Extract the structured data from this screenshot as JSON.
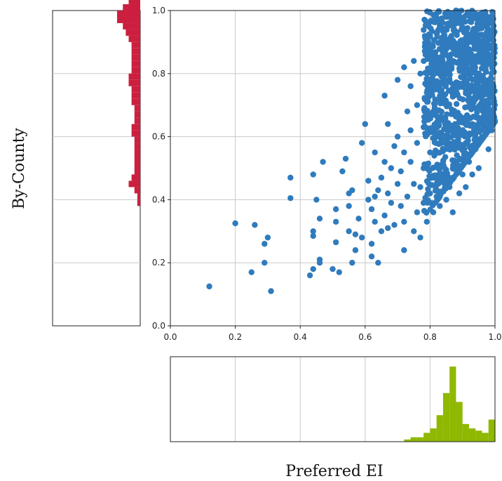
{
  "chart_data": {
    "type": "scatter",
    "xlabel": "Preferred EI",
    "ylabel": "By-County",
    "xlim": [
      0.0,
      1.0
    ],
    "ylim": [
      0.0,
      1.0
    ],
    "grid": true,
    "x_ticks": [
      "0.0",
      "0.2",
      "0.4",
      "0.6",
      "0.8",
      "1.0"
    ],
    "y_ticks": [
      "0.0",
      "0.2",
      "0.4",
      "0.6",
      "0.8",
      "1.0"
    ],
    "scatter_color": "#2f7bbd",
    "points": [
      [
        0.12,
        0.125
      ],
      [
        0.2,
        0.325
      ],
      [
        0.26,
        0.32
      ],
      [
        0.25,
        0.17
      ],
      [
        0.29,
        0.26
      ],
      [
        0.29,
        0.2
      ],
      [
        0.3,
        0.28
      ],
      [
        0.31,
        0.11
      ],
      [
        0.37,
        0.47
      ],
      [
        0.37,
        0.405
      ],
      [
        0.43,
        0.16
      ],
      [
        0.44,
        0.18
      ],
      [
        0.44,
        0.3
      ],
      [
        0.44,
        0.285
      ],
      [
        0.44,
        0.48
      ],
      [
        0.45,
        0.4
      ],
      [
        0.46,
        0.34
      ],
      [
        0.46,
        0.21
      ],
      [
        0.46,
        0.2
      ],
      [
        0.47,
        0.52
      ],
      [
        0.5,
        0.18
      ],
      [
        0.51,
        0.37
      ],
      [
        0.51,
        0.33
      ],
      [
        0.51,
        0.265
      ],
      [
        0.52,
        0.17
      ],
      [
        0.53,
        0.49
      ],
      [
        0.54,
        0.53
      ],
      [
        0.55,
        0.42
      ],
      [
        0.55,
        0.38
      ],
      [
        0.55,
        0.3
      ],
      [
        0.56,
        0.2
      ],
      [
        0.56,
        0.43
      ],
      [
        0.57,
        0.24
      ],
      [
        0.57,
        0.29
      ],
      [
        0.58,
        0.34
      ],
      [
        0.59,
        0.28
      ],
      [
        0.59,
        0.58
      ],
      [
        0.6,
        0.64
      ],
      [
        0.61,
        0.4
      ],
      [
        0.61,
        0.46
      ],
      [
        0.62,
        0.22
      ],
      [
        0.62,
        0.26
      ],
      [
        0.62,
        0.37
      ],
      [
        0.63,
        0.33
      ],
      [
        0.63,
        0.41
      ],
      [
        0.63,
        0.55
      ],
      [
        0.64,
        0.2
      ],
      [
        0.64,
        0.43
      ],
      [
        0.65,
        0.3
      ],
      [
        0.65,
        0.47
      ],
      [
        0.66,
        0.35
      ],
      [
        0.66,
        0.52
      ],
      [
        0.66,
        0.73
      ],
      [
        0.67,
        0.31
      ],
      [
        0.67,
        0.42
      ],
      [
        0.67,
        0.64
      ],
      [
        0.68,
        0.39
      ],
      [
        0.68,
        0.5
      ],
      [
        0.69,
        0.32
      ],
      [
        0.69,
        0.57
      ],
      [
        0.7,
        0.45
      ],
      [
        0.7,
        0.6
      ],
      [
        0.7,
        0.78
      ],
      [
        0.71,
        0.38
      ],
      [
        0.71,
        0.49
      ],
      [
        0.72,
        0.24
      ],
      [
        0.72,
        0.33
      ],
      [
        0.72,
        0.55
      ],
      [
        0.72,
        0.82
      ],
      [
        0.73,
        0.41
      ],
      [
        0.73,
        0.68
      ],
      [
        0.74,
        0.52
      ],
      [
        0.74,
        0.62
      ],
      [
        0.74,
        0.76
      ],
      [
        0.75,
        0.3
      ],
      [
        0.75,
        0.45
      ],
      [
        0.75,
        0.84
      ],
      [
        0.76,
        0.36
      ],
      [
        0.76,
        0.58
      ],
      [
        0.76,
        0.7
      ],
      [
        0.77,
        0.28
      ],
      [
        0.77,
        0.44
      ],
      [
        0.77,
        0.8
      ],
      [
        0.78,
        0.39
      ],
      [
        0.78,
        0.5
      ],
      [
        0.78,
        0.63
      ],
      [
        0.79,
        0.33
      ],
      [
        0.79,
        0.74
      ],
      [
        0.79,
        0.87
      ],
      [
        0.8,
        0.42
      ],
      [
        0.8,
        0.55
      ],
      [
        0.8,
        0.92
      ],
      [
        0.81,
        0.36
      ],
      [
        0.81,
        0.47
      ],
      [
        0.81,
        0.68
      ],
      [
        0.82,
        0.41
      ],
      [
        0.82,
        0.6
      ],
      [
        0.82,
        0.85
      ],
      [
        0.83,
        0.38
      ],
      [
        0.83,
        0.5
      ],
      [
        0.83,
        0.95
      ],
      [
        0.84,
        0.46
      ],
      [
        0.84,
        0.72
      ],
      [
        0.85,
        0.4
      ],
      [
        0.85,
        0.58
      ],
      [
        0.85,
        0.98
      ],
      [
        0.86,
        0.44
      ],
      [
        0.86,
        0.8
      ],
      [
        0.87,
        0.36
      ],
      [
        0.87,
        0.62
      ],
      [
        0.88,
        0.52
      ],
      [
        0.88,
        1.0
      ],
      [
        0.89,
        0.42
      ],
      [
        0.89,
        0.66
      ],
      [
        0.9,
        0.48
      ],
      [
        0.9,
        0.88
      ],
      [
        0.91,
        0.58
      ],
      [
        0.91,
        0.44
      ],
      [
        0.92,
        0.72
      ],
      [
        0.92,
        0.52
      ],
      [
        0.93,
        0.64
      ],
      [
        0.93,
        0.9
      ],
      [
        0.94,
        0.56
      ],
      [
        0.94,
        0.78
      ],
      [
        0.95,
        0.69
      ],
      [
        0.95,
        0.5
      ],
      [
        0.96,
        0.84
      ],
      [
        0.96,
        0.6
      ],
      [
        0.97,
        0.74
      ],
      [
        0.97,
        0.92
      ],
      [
        0.98,
        0.66
      ],
      [
        0.98,
        0.86
      ],
      [
        0.99,
        0.62
      ],
      [
        0.99,
        0.96
      ],
      [
        0.93,
        0.48
      ],
      [
        0.98,
        0.56
      ]
    ],
    "dense_cluster": {
      "x_range": [
        0.78,
        1.0
      ],
      "y_range": [
        0.34,
        1.0
      ],
      "description": "dense concentration of county points"
    },
    "marginal_y_histogram": {
      "type": "bar",
      "orientation": "horizontal",
      "color": "#cc1f3f",
      "bins_y_start": 0.38,
      "bin_width": 0.02,
      "counts": [
        1,
        1,
        2,
        4,
        3,
        2,
        2,
        2,
        2,
        2,
        2,
        3,
        3,
        2,
        2,
        2,
        3,
        3,
        3,
        4,
        4,
        3,
        3,
        3,
        3,
        3,
        4,
        5,
        6,
        8,
        8,
        6,
        4
      ]
    },
    "marginal_x_histogram": {
      "type": "bar",
      "orientation": "vertical",
      "color": "#8fb800",
      "bins_x_start": 0.7,
      "bin_width": 0.02,
      "counts": [
        0,
        1,
        2,
        2,
        4,
        6,
        12,
        22,
        34,
        18,
        8,
        6,
        5,
        4,
        10
      ]
    }
  }
}
